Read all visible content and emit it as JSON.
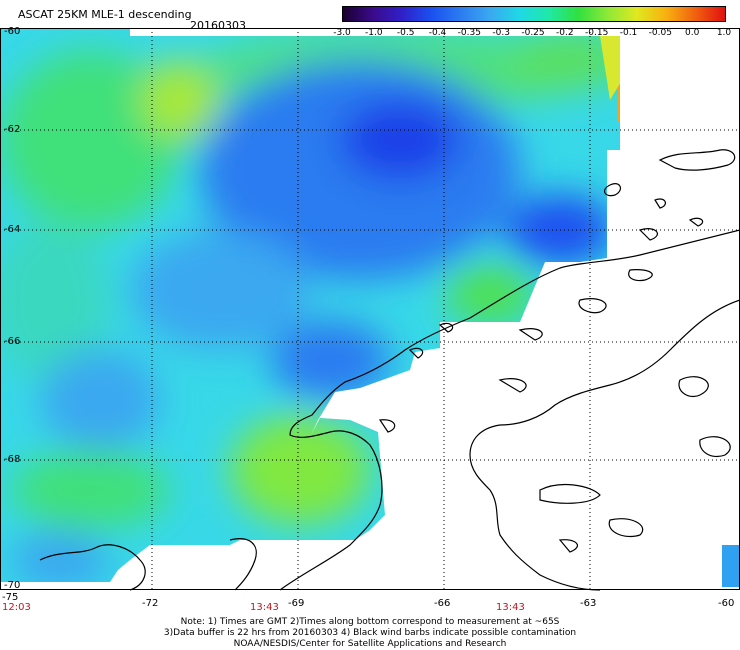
{
  "header": {
    "title": "ASCAT 25KM MLE-1 descending",
    "date": "20160303"
  },
  "colorbar": {
    "ticks": [
      "-3.0",
      "-1.0",
      "-0.5",
      "-0.4",
      "-0.35",
      "-0.3",
      "-0.25",
      "-0.2",
      "-0.15",
      "-0.1",
      "-0.05",
      "0.0",
      "1.0"
    ],
    "colors": [
      "#1a0030",
      "#3a0a8a",
      "#3020c8",
      "#1a50f0",
      "#2c7cf0",
      "#3aa8f0",
      "#20d8e6",
      "#20e8a8",
      "#30e040",
      "#8ee838",
      "#e0e820",
      "#f8b010",
      "#f06010",
      "#e01010"
    ]
  },
  "axes": {
    "lat_labels": [
      "-60",
      "-62",
      "-64",
      "-66",
      "-68",
      "-70"
    ],
    "lon_labels": [
      "-75",
      "-72",
      "-69",
      "-66",
      "-63",
      "-60"
    ],
    "times": [
      "12:03",
      "13:43",
      "13:43"
    ]
  },
  "notes": {
    "line1": "Note: 1) Times are GMT 2)Times along bottom correspond to measurement at ~65S",
    "line2": "3)Data buffer is 22 hrs from 20160303 4) Black wind barbs indicate possible contamination",
    "line3": "NOAA/NESDIS/Center for Satellite Applications and Research"
  }
}
